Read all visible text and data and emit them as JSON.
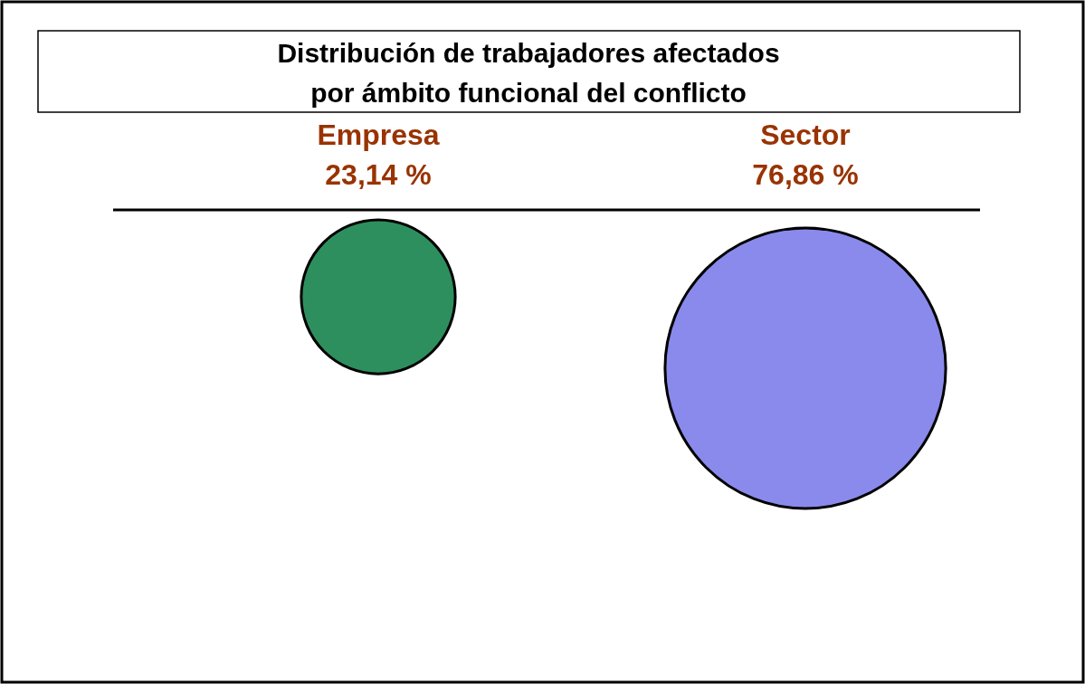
{
  "chart_data": {
    "type": "other",
    "title": "Distribución de trabajadores afectados\npor ámbito funcional del conflicto",
    "categories": [
      "Empresa",
      "Sector"
    ],
    "values": [
      23.14,
      76.86
    ],
    "value_labels": [
      "23,14 %",
      "76,86 %"
    ],
    "colors": [
      "#2e8f5e",
      "#8a8aec"
    ]
  }
}
